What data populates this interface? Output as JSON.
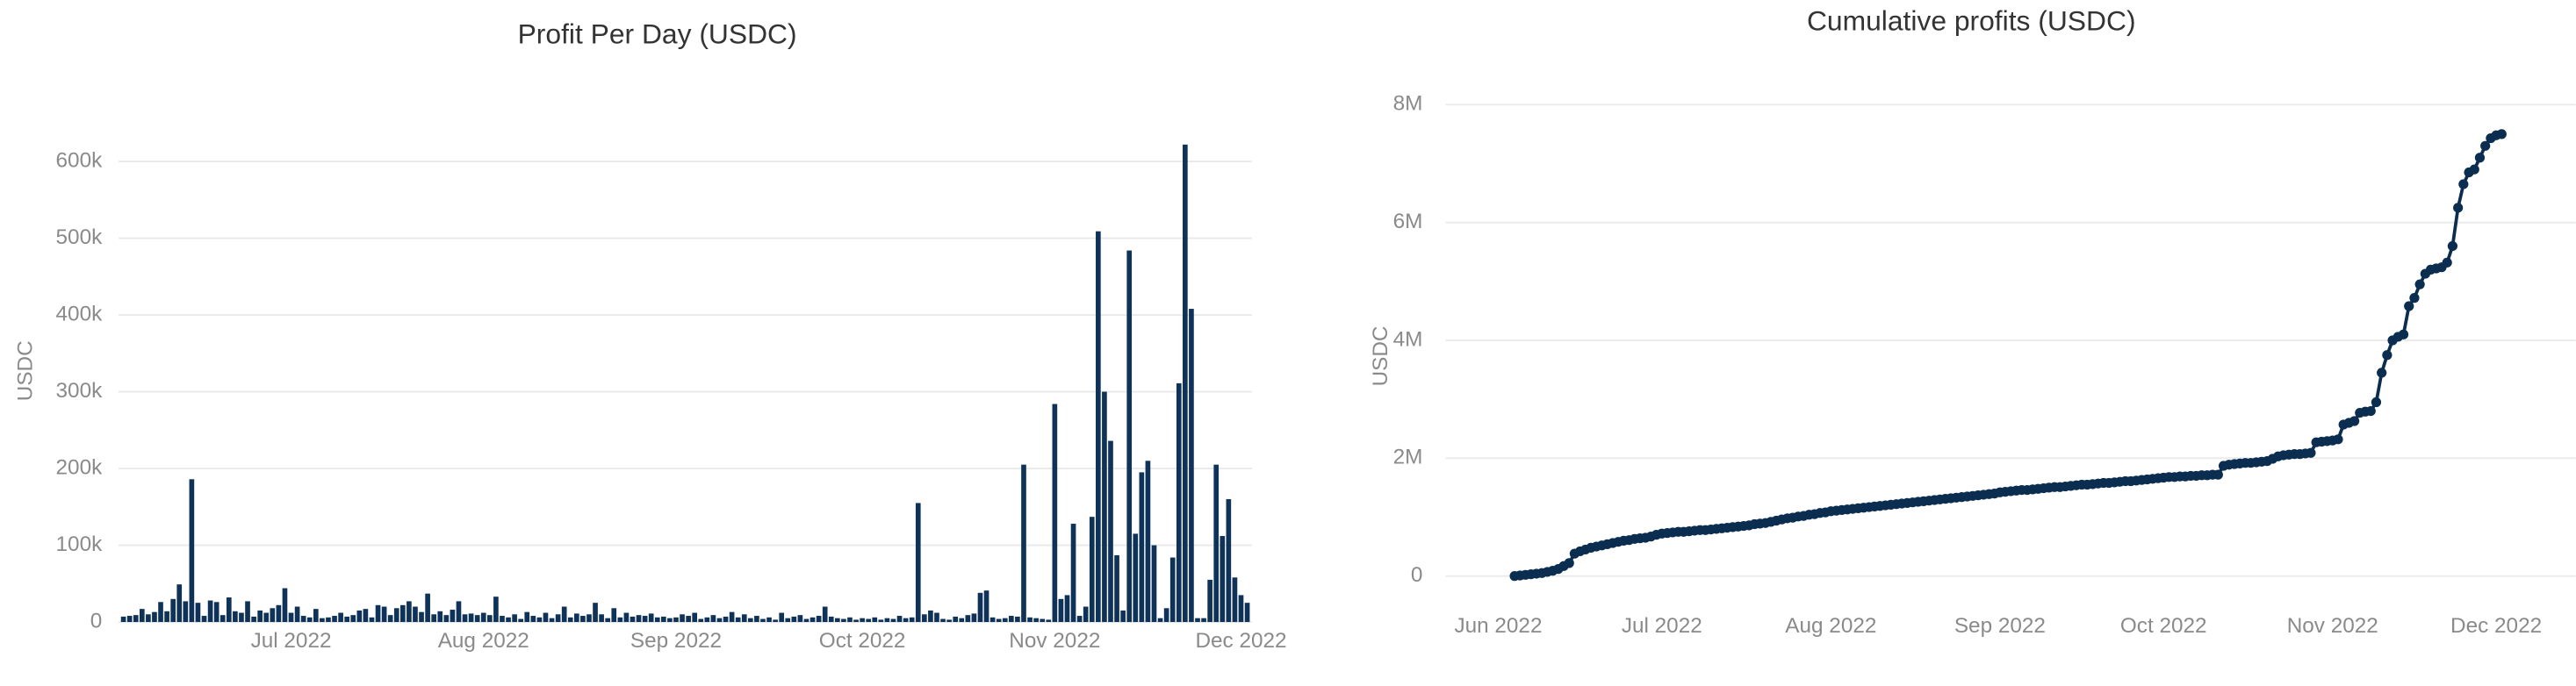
{
  "chart_data": [
    {
      "type": "bar",
      "title": "Profit Per Day (USDC)",
      "y_label": "USDC",
      "color": "#0f3258",
      "grid": true,
      "ylim": [
        0,
        650000
      ],
      "yticks": [
        0,
        {
          "value": 100000,
          "label": "100k"
        },
        {
          "value": 200000,
          "label": "200k"
        },
        {
          "value": 300000,
          "label": "300k"
        },
        {
          "value": 400000,
          "label": "400k"
        },
        {
          "value": 500000,
          "label": "500k"
        },
        {
          "value": 600000,
          "label": "600k"
        }
      ],
      "categories": [
        null,
        null,
        null,
        null,
        null,
        null,
        null,
        null,
        null,
        null,
        null,
        null,
        null,
        null,
        null,
        null,
        null,
        null,
        null,
        null,
        null,
        null,
        null,
        null,
        null,
        null,
        null,
        "Jul 2022",
        null,
        null,
        null,
        null,
        null,
        null,
        null,
        null,
        null,
        null,
        null,
        null,
        null,
        null,
        null,
        null,
        null,
        null,
        null,
        null,
        null,
        null,
        null,
        null,
        null,
        null,
        null,
        null,
        null,
        null,
        "Aug 2022",
        null,
        null,
        null,
        null,
        null,
        null,
        null,
        null,
        null,
        null,
        null,
        null,
        null,
        null,
        null,
        null,
        null,
        null,
        null,
        null,
        null,
        null,
        null,
        null,
        null,
        null,
        null,
        null,
        null,
        null,
        "Sep 2022",
        null,
        null,
        null,
        null,
        null,
        null,
        null,
        null,
        null,
        null,
        null,
        null,
        null,
        null,
        null,
        null,
        null,
        null,
        null,
        null,
        null,
        null,
        null,
        null,
        null,
        null,
        null,
        null,
        null,
        "Oct 2022",
        null,
        null,
        null,
        null,
        null,
        null,
        null,
        null,
        null,
        null,
        null,
        null,
        null,
        null,
        null,
        null,
        null,
        null,
        null,
        null,
        null,
        null,
        null,
        null,
        null,
        null,
        null,
        null,
        null,
        null,
        "Nov 2022",
        null,
        null,
        null,
        null,
        null,
        null,
        null,
        null,
        null,
        null,
        null,
        null,
        null,
        null,
        null,
        null,
        null,
        null,
        null,
        null,
        null,
        null,
        null,
        null,
        null,
        null,
        null,
        null,
        null,
        "Dec 2022",
        null
      ],
      "values": [
        7000,
        8000,
        9000,
        17000,
        10000,
        13000,
        26000,
        14000,
        30000,
        49000,
        27000,
        186000,
        25000,
        8000,
        28000,
        26000,
        9000,
        32000,
        14000,
        12000,
        27000,
        7000,
        15000,
        12000,
        18000,
        22000,
        44000,
        12000,
        20000,
        8000,
        6000,
        17000,
        5000,
        6000,
        8000,
        12000,
        7000,
        9000,
        15000,
        17000,
        6000,
        22000,
        20000,
        9000,
        18000,
        22000,
        27000,
        20000,
        13000,
        37000,
        10000,
        14000,
        9000,
        16000,
        27000,
        10000,
        11000,
        9000,
        12000,
        9000,
        33000,
        8000,
        6000,
        10000,
        4000,
        13000,
        8000,
        6000,
        12000,
        5000,
        10000,
        20000,
        6000,
        11000,
        8000,
        10000,
        25000,
        10000,
        5000,
        18000,
        6000,
        12000,
        7000,
        9000,
        8000,
        11000,
        6000,
        7000,
        5000,
        6000,
        10000,
        8000,
        12000,
        4000,
        6000,
        9000,
        5000,
        7000,
        13000,
        6000,
        10000,
        5000,
        8000,
        4000,
        6000,
        3000,
        12000,
        5000,
        7000,
        9000,
        4000,
        6000,
        8000,
        20000,
        7000,
        5000,
        4000,
        6000,
        3000,
        5000,
        4000,
        6000,
        3000,
        5000,
        4000,
        8000,
        5000,
        6000,
        155000,
        10000,
        15000,
        12000,
        4000,
        3000,
        7000,
        5000,
        9000,
        11000,
        38000,
        41000,
        6000,
        4000,
        5000,
        8000,
        7000,
        205000,
        6000,
        5000,
        4000,
        3000,
        284000,
        30000,
        35000,
        128000,
        8000,
        20000,
        137000,
        509000,
        300000,
        236000,
        87000,
        15000,
        484000,
        115000,
        195000,
        210000,
        100000,
        5000,
        18000,
        84000,
        311000,
        622000,
        408000,
        5000,
        5000,
        55000,
        205000,
        112000,
        160000,
        58000,
        35000,
        25000
      ]
    },
    {
      "type": "line",
      "title": "Cumulative profits (USDC)",
      "y_label": "USDC",
      "color": "#0b2d50",
      "grid": true,
      "ylim": [
        0,
        8400000
      ],
      "yticks": [
        0,
        {
          "value": 2000000,
          "label": "2M"
        },
        {
          "value": 4000000,
          "label": "4M"
        },
        {
          "value": 6000000,
          "label": "6M"
        },
        {
          "value": 8000000,
          "label": "8M"
        }
      ],
      "categories": [
        "Jun 2022",
        null,
        null,
        null,
        null,
        null,
        null,
        null,
        null,
        null,
        null,
        null,
        null,
        null,
        null,
        null,
        null,
        null,
        null,
        null,
        null,
        null,
        null,
        null,
        null,
        null,
        null,
        null,
        null,
        null,
        "Jul 2022",
        null,
        null,
        null,
        null,
        null,
        null,
        null,
        null,
        null,
        null,
        null,
        null,
        null,
        null,
        null,
        null,
        null,
        null,
        null,
        null,
        null,
        null,
        null,
        null,
        null,
        null,
        null,
        null,
        null,
        null,
        "Aug 2022",
        null,
        null,
        null,
        null,
        null,
        null,
        null,
        null,
        null,
        null,
        null,
        null,
        null,
        null,
        null,
        null,
        null,
        null,
        null,
        null,
        null,
        null,
        null,
        null,
        null,
        null,
        null,
        null,
        null,
        null,
        "Sep 2022",
        null,
        null,
        null,
        null,
        null,
        null,
        null,
        null,
        null,
        null,
        null,
        null,
        null,
        null,
        null,
        null,
        null,
        null,
        null,
        null,
        null,
        null,
        null,
        null,
        null,
        null,
        null,
        null,
        null,
        "Oct 2022",
        null,
        null,
        null,
        null,
        null,
        null,
        null,
        null,
        null,
        null,
        null,
        null,
        null,
        null,
        null,
        null,
        null,
        null,
        null,
        null,
        null,
        null,
        null,
        null,
        null,
        null,
        null,
        null,
        null,
        null,
        "Nov 2022",
        null,
        null,
        null,
        null,
        null,
        null,
        null,
        null,
        null,
        null,
        null,
        null,
        null,
        null,
        null,
        null,
        null,
        null,
        null,
        null,
        null,
        null,
        null,
        null,
        null,
        null,
        null,
        null,
        null,
        "Dec 2022",
        null
      ],
      "values": [
        null,
        null,
        null,
        0,
        10000,
        20000,
        30000,
        40000,
        50000,
        70000,
        90000,
        120000,
        170000,
        220000,
        380000,
        420000,
        450000,
        480000,
        500000,
        520000,
        540000,
        560000,
        580000,
        600000,
        610000,
        630000,
        640000,
        650000,
        670000,
        700000,
        720000,
        730000,
        740000,
        750000,
        750000,
        760000,
        770000,
        780000,
        780000,
        790000,
        800000,
        810000,
        820000,
        830000,
        840000,
        850000,
        860000,
        880000,
        890000,
        900000,
        920000,
        940000,
        960000,
        980000,
        990000,
        1010000,
        1020000,
        1040000,
        1050000,
        1070000,
        1080000,
        1100000,
        1110000,
        1120000,
        1130000,
        1140000,
        1150000,
        1160000,
        1170000,
        1180000,
        1190000,
        1200000,
        1210000,
        1220000,
        1230000,
        1240000,
        1250000,
        1260000,
        1270000,
        1280000,
        1290000,
        1300000,
        1310000,
        1320000,
        1330000,
        1340000,
        1350000,
        1360000,
        1370000,
        1380000,
        1390000,
        1400000,
        1420000,
        1430000,
        1440000,
        1450000,
        1460000,
        1460000,
        1470000,
        1480000,
        1490000,
        1500000,
        1510000,
        1510000,
        1520000,
        1530000,
        1540000,
        1550000,
        1550000,
        1560000,
        1570000,
        1580000,
        1580000,
        1590000,
        1600000,
        1610000,
        1610000,
        1620000,
        1630000,
        1640000,
        1650000,
        1660000,
        1670000,
        1680000,
        1680000,
        1690000,
        1690000,
        1700000,
        1700000,
        1710000,
        1710000,
        1720000,
        1720000,
        1870000,
        1890000,
        1900000,
        1910000,
        1920000,
        1920000,
        1930000,
        1940000,
        1950000,
        1990000,
        2030000,
        2050000,
        2060000,
        2070000,
        2070000,
        2080000,
        2090000,
        2270000,
        2280000,
        2290000,
        2300000,
        2320000,
        2570000,
        2600000,
        2630000,
        2770000,
        2790000,
        2800000,
        2950000,
        3450000,
        3750000,
        4000000,
        4060000,
        4100000,
        4580000,
        4720000,
        4950000,
        5130000,
        5200000,
        5220000,
        5240000,
        5320000,
        5600000,
        6250000,
        6650000,
        6850000,
        6900000,
        7100000,
        7300000,
        7430000,
        7480000,
        7500000
      ]
    }
  ]
}
